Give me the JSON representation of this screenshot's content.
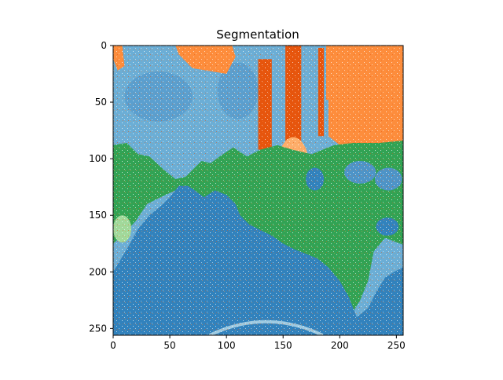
{
  "chart_data": {
    "type": "heatmap",
    "title": "Segmentation",
    "xlabel": "",
    "ylabel": "",
    "x_ticks": [
      0,
      50,
      100,
      150,
      200,
      250
    ],
    "y_ticks": [
      0,
      50,
      100,
      150,
      200,
      250
    ],
    "xlim": [
      0,
      256
    ],
    "ylim": [
      256,
      0
    ],
    "image_size": [
      256,
      256
    ],
    "y_axis_inverted": true,
    "grid": false,
    "legend": "none",
    "colormap": "tab20c",
    "segment_colors": {
      "sky_light_blue": "#6baed6",
      "deep_blue": "#3182bd",
      "light_orange": "#fdae6b",
      "orange": "#fd8d3c",
      "dark_orange": "#e6550d",
      "green": "#31a354",
      "light_green": "#a1d99b",
      "pale_blue": "#9ecae1",
      "speckle": "#ffffff"
    },
    "regions": [
      {
        "label": "sky_light_blue",
        "approx_rows": [
          0,
          100
        ],
        "approx_cols": [
          0,
          256
        ]
      },
      {
        "label": "orange",
        "approx_rows": [
          0,
          90
        ],
        "approx_cols": [
          190,
          256
        ]
      },
      {
        "label": "dark_orange",
        "approx_rows": [
          0,
          90
        ],
        "approx_cols": [
          128,
          172
        ]
      },
      {
        "label": "green",
        "approx_rows": [
          85,
          240
        ],
        "approx_cols": [
          0,
          256
        ]
      },
      {
        "label": "deep_blue",
        "approx_rows": [
          110,
          256
        ],
        "approx_cols": [
          0,
          256
        ]
      },
      {
        "label": "light_green",
        "approx_rows": [
          150,
          200
        ],
        "approx_cols": [
          0,
          18
        ]
      }
    ]
  }
}
